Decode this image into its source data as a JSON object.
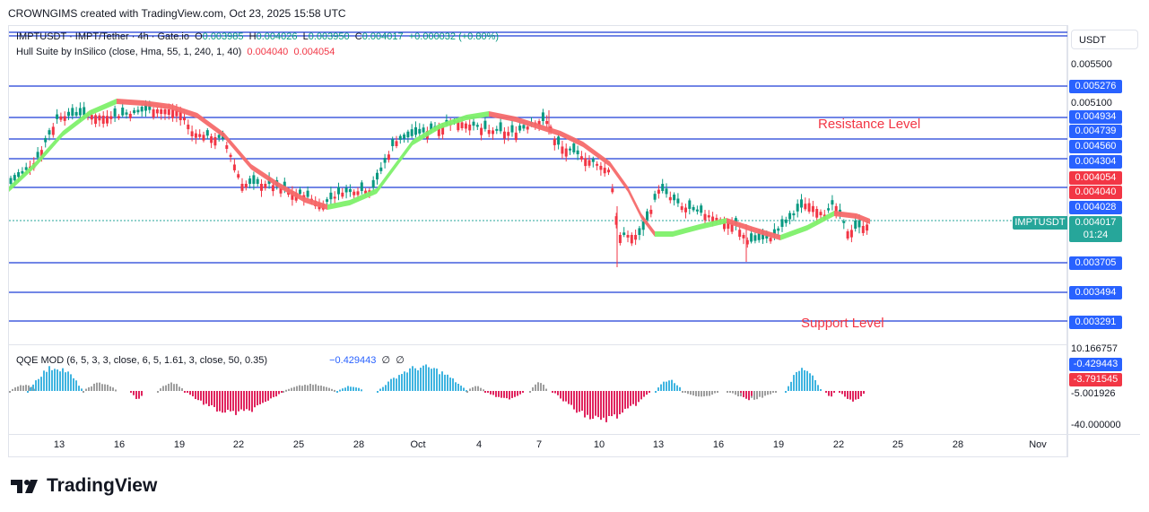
{
  "header": {
    "text": "CROWNGIMS created with TradingView.com, Oct 23, 2025 15:58 UTC"
  },
  "legend": {
    "symbol": "IMPTUSDT · IMPT/Tether · 4h · Gate.io",
    "o_label": "O",
    "o": "0.003985",
    "h_label": "H",
    "h": "0.004026",
    "l_label": "L",
    "l": "0.003950",
    "c_label": "C",
    "c": "0.004017",
    "change": "+0.000032 (+0.80%)",
    "hull_label": "Hull Suite by InSilico (close, Hma, 55, 1, 240, 1, 40)",
    "hull_v1": "0.004040",
    "hull_v2": "0.004054"
  },
  "qqe": {
    "label": "QQE MOD (6, 5, 3, 3, close, 6, 5, 1.61, 3, close, 50, 0.35)",
    "value": "−0.429443",
    "na1": "∅",
    "na2": "∅"
  },
  "currency": "USDT",
  "price_axis": {
    "plain_top": "0.005500",
    "plain_mid": "0.005100",
    "levels": [
      "0.005276",
      "0.004934",
      "0.004739",
      "0.004560",
      "0.004304",
      "0.004028",
      "0.003705",
      "0.003494",
      "0.003291"
    ],
    "hull_upper": "0.004054",
    "hull_lower": "0.004040",
    "last_price": "0.004017",
    "countdown": "01:24",
    "symbol_tag": "IMPTUSDT"
  },
  "qqe_axis": {
    "top": "10.166757",
    "blue": "-0.429443",
    "red": "-3.791545",
    "mid": "-5.001926",
    "bottom": "-40.000000"
  },
  "time_axis": [
    "13",
    "16",
    "19",
    "22",
    "25",
    "28",
    "Oct",
    "4",
    "7",
    "10",
    "13",
    "16",
    "19",
    "22",
    "25",
    "28",
    "Nov"
  ],
  "annotations": {
    "resistance": "Resistance Level",
    "support": "Support Level"
  },
  "brand": {
    "name": "TradingView"
  },
  "colors": {
    "up": "#089981",
    "down": "#f23645",
    "level_line": "#1e3fd6",
    "hull_up": "#7ef06a",
    "hull_down": "#f56a6a",
    "qqe_blue": "#3fb4e0",
    "qqe_red": "#e0245e",
    "qqe_gray": "#9e9e9e"
  }
}
